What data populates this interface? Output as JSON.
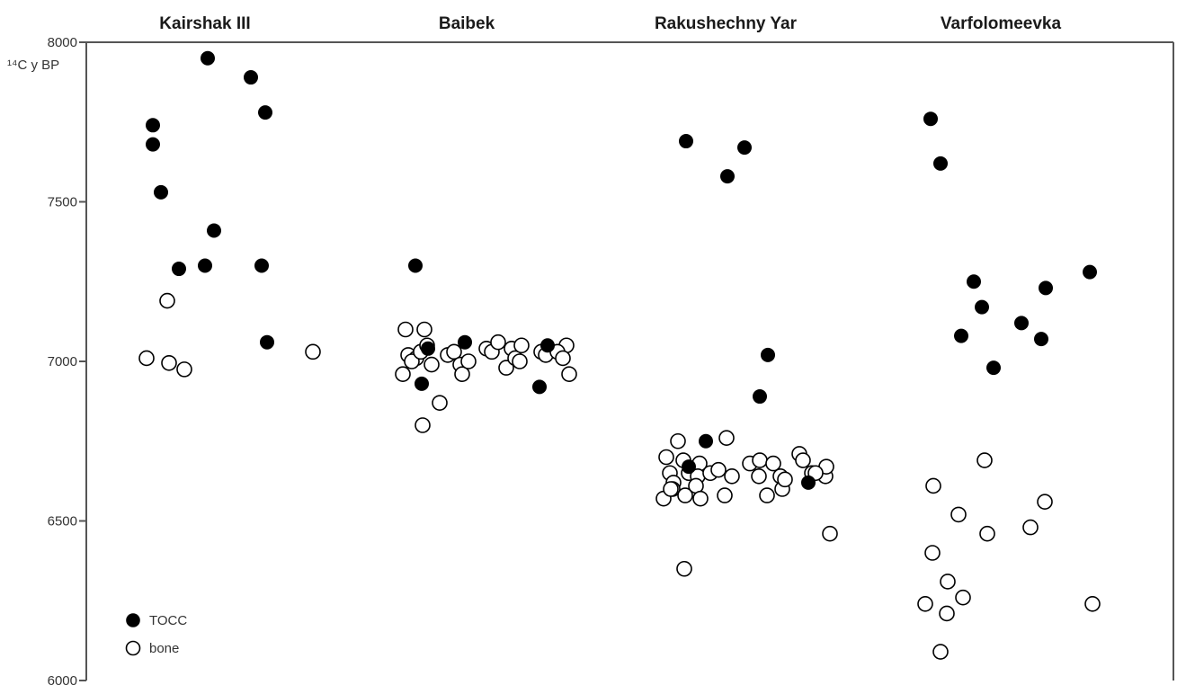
{
  "chart_data": {
    "type": "scatter",
    "ylabel": "¹⁴C y BP",
    "ylim": [
      6000,
      8000
    ],
    "yticks": [
      6000,
      6500,
      7000,
      7500,
      8000
    ],
    "grid": false,
    "legend_position": "bottom-left",
    "colors": {
      "tocc": "#000000",
      "bone": "#ffffff",
      "stroke": "#000000",
      "axis": "#555555"
    },
    "legend": [
      {
        "key": "tocc",
        "label": "TOCC",
        "fill": "#000000"
      },
      {
        "key": "bone",
        "label": "bone",
        "fill": "#ffffff"
      }
    ],
    "sites": [
      {
        "name": "Kairshak III",
        "tocc": [
          7740,
          7680,
          7530,
          7950,
          7890,
          7780,
          7410,
          7290,
          7300,
          7300,
          7060
        ],
        "bone": [
          7190,
          7010,
          6995,
          6975,
          7030
        ]
      },
      {
        "name": "Baibek",
        "tocc": [
          7300,
          7040,
          6930,
          7060,
          6920,
          7050
        ],
        "bone": [
          7100,
          7100,
          7020,
          7010,
          7000,
          7030,
          7050,
          6990,
          6960,
          6870,
          6800,
          7020,
          7030,
          6990,
          6960,
          7000,
          7040,
          7030,
          7060,
          6980,
          7040,
          7010,
          7000,
          7050,
          7030,
          7020,
          6960,
          7050,
          7030,
          7010
        ]
      },
      {
        "name": "Rakushechny Yar",
        "tocc": [
          7690,
          7580,
          7670,
          7020,
          6890,
          6750,
          6670,
          6620
        ],
        "bone": [
          6700,
          6650,
          6620,
          6600,
          6570,
          6750,
          6690,
          6650,
          6600,
          6580,
          6680,
          6640,
          6610,
          6570,
          6650,
          6580,
          6760,
          6640,
          6660,
          6680,
          6690,
          6640,
          6580,
          6680,
          6640,
          6600,
          6630,
          6710,
          6690,
          6650,
          6640,
          6670,
          6650,
          6460,
          6350
        ]
      },
      {
        "name": "Varfolomeevka",
        "tocc": [
          7760,
          7620,
          7250,
          7170,
          7080,
          6980,
          7120,
          7230,
          7070,
          7280
        ],
        "bone": [
          6610,
          6400,
          6240,
          6210,
          6310,
          6520,
          6260,
          6690,
          6460,
          6480,
          6560,
          6240,
          6090
        ]
      }
    ]
  }
}
